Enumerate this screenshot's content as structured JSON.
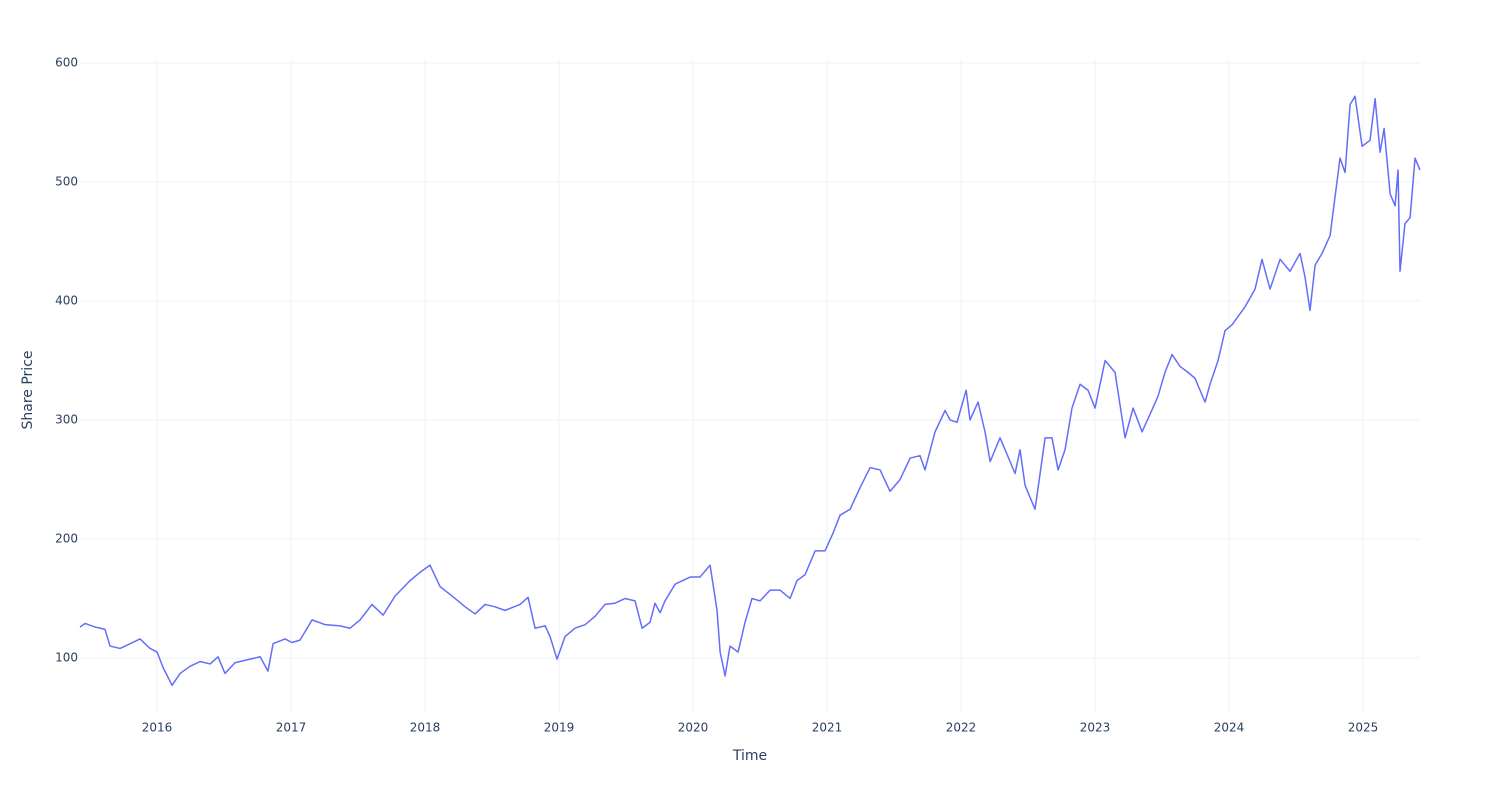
{
  "chart_data": {
    "type": "line",
    "x_label": "Time",
    "y_label": "Share Price",
    "grid": true,
    "xlim": [
      2015.425,
      2025.425
    ],
    "ylim": [
      54.6,
      602.5
    ],
    "xticks": [
      2016,
      2017,
      2018,
      2019,
      2020,
      2021,
      2022,
      2023,
      2024,
      2025
    ],
    "yticks": [
      100,
      200,
      300,
      400,
      500,
      600
    ],
    "x": [
      2015.425,
      2015.463,
      2015.537,
      2015.612,
      2015.649,
      2015.724,
      2015.799,
      2015.873,
      2015.948,
      2016.0,
      2016.045,
      2016.112,
      2016.172,
      2016.246,
      2016.321,
      2016.396,
      2016.455,
      2016.507,
      2016.582,
      2016.694,
      2016.769,
      2016.828,
      2016.866,
      2016.955,
      2017.007,
      2017.067,
      2017.157,
      2017.254,
      2017.366,
      2017.44,
      2017.515,
      2017.604,
      2017.687,
      2017.776,
      2017.888,
      2017.963,
      2018.037,
      2018.112,
      2018.224,
      2018.299,
      2018.373,
      2018.448,
      2018.522,
      2018.597,
      2018.709,
      2018.769,
      2018.821,
      2018.896,
      2018.933,
      2018.985,
      2019.045,
      2019.119,
      2019.194,
      2019.269,
      2019.343,
      2019.418,
      2019.493,
      2019.567,
      2019.62,
      2019.679,
      2019.716,
      2019.754,
      2019.791,
      2019.866,
      2019.978,
      2020.052,
      2020.127,
      2020.179,
      2020.202,
      2020.239,
      2020.276,
      2020.336,
      2020.388,
      2020.44,
      2020.5,
      2020.575,
      2020.649,
      2020.724,
      2020.776,
      2020.836,
      2020.911,
      2020.985,
      2021.045,
      2021.097,
      2021.172,
      2021.246,
      2021.321,
      2021.396,
      2021.47,
      2021.545,
      2021.62,
      2021.694,
      2021.731,
      2021.806,
      2021.881,
      2021.918,
      2021.97,
      2022.038,
      2022.067,
      2022.127,
      2022.179,
      2022.217,
      2022.291,
      2022.366,
      2022.403,
      2022.44,
      2022.478,
      2022.552,
      2022.59,
      2022.627,
      2022.679,
      2022.724,
      2022.776,
      2022.828,
      2022.888,
      2022.948,
      2023.0,
      2023.075,
      2023.149,
      2023.224,
      2023.284,
      2023.351,
      2023.411,
      2023.47,
      2023.522,
      2023.575,
      2023.634,
      2023.694,
      2023.746,
      2023.821,
      2023.858,
      2023.918,
      2023.97,
      2024.022,
      2024.119,
      2024.194,
      2024.246,
      2024.306,
      2024.381,
      2024.455,
      2024.53,
      2024.567,
      2024.604,
      2024.642,
      2024.694,
      2024.754,
      2024.828,
      2024.866,
      2024.903,
      2024.94,
      2024.993,
      2025.052,
      2025.09,
      2025.127,
      2025.157,
      2025.202,
      2025.239,
      2025.261,
      2025.276,
      2025.313,
      2025.351,
      2025.388,
      2025.425
    ],
    "series": [
      {
        "color": "#636efa",
        "values": [
          126,
          129,
          126,
          124,
          110,
          108,
          112,
          116,
          108,
          105,
          92,
          77,
          87,
          93,
          97,
          95,
          101,
          87,
          96,
          99,
          101,
          89,
          112,
          116,
          113,
          115,
          132,
          128,
          127,
          125,
          132,
          145,
          136,
          152,
          165,
          172,
          178,
          160,
          150,
          143,
          137,
          145,
          143,
          140,
          145,
          151,
          125,
          127,
          118,
          99,
          118,
          125,
          128,
          135,
          145,
          146,
          150,
          148,
          125,
          130,
          146,
          138,
          148,
          162,
          168,
          168,
          178,
          140,
          105,
          85,
          110,
          105,
          130,
          150,
          148,
          157,
          157,
          150,
          165,
          170,
          190,
          190,
          205,
          220,
          225,
          243,
          260,
          258,
          240,
          250,
          268,
          270,
          258,
          290,
          308,
          300,
          298,
          325,
          300,
          315,
          290,
          265,
          285,
          265,
          255,
          275,
          245,
          225,
          255,
          285,
          285,
          258,
          275,
          310,
          330,
          325,
          310,
          350,
          340,
          285,
          310,
          290,
          305,
          320,
          340,
          355,
          345,
          340,
          335,
          315,
          330,
          350,
          375,
          380,
          395,
          410,
          435,
          410,
          435,
          425,
          440,
          420,
          392,
          430,
          440,
          455,
          520,
          508,
          565,
          572,
          530,
          535,
          570,
          525,
          545,
          490,
          480,
          510,
          425,
          465,
          470,
          520,
          510
        ]
      }
    ]
  }
}
